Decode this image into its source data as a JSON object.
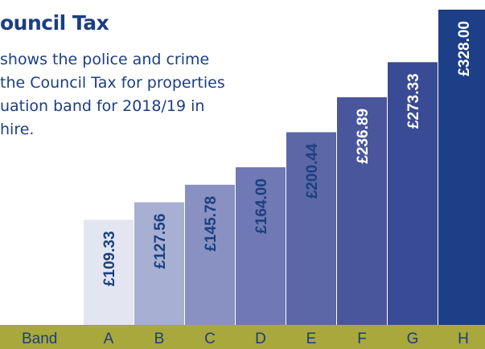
{
  "title": "ouncil Tax",
  "intro_lines": [
    "shows the police and crime",
    "the Council Tax for properties",
    "uation band for 2018/19 in",
    "hire."
  ],
  "colors": {
    "title": "#1b3f7f",
    "axis_band": "#a8a83c",
    "axis_text": "#1b3f7f",
    "bar_text": "#1b3f7f",
    "bar_text_light": "#ffffff"
  },
  "chart_data": {
    "type": "bar",
    "xlabel": "Band",
    "categories": [
      "A",
      "B",
      "C",
      "D",
      "E",
      "F",
      "G",
      "H"
    ],
    "values": [
      109.33,
      127.56,
      145.78,
      164.0,
      200.44,
      236.89,
      273.33,
      328.0
    ],
    "data_labels": [
      "£109.33",
      "£127.56",
      "£145.78",
      "£164.00",
      "£200.44",
      "£236.89",
      "£273.33",
      "£328.00"
    ],
    "bar_colors": [
      "#e3e6f0",
      "#a7afd2",
      "#8891c2",
      "#7079b3",
      "#5c67a7",
      "#4a569c",
      "#3a4b95",
      "#1c3f87"
    ],
    "ylim": [
      0,
      328
    ]
  }
}
